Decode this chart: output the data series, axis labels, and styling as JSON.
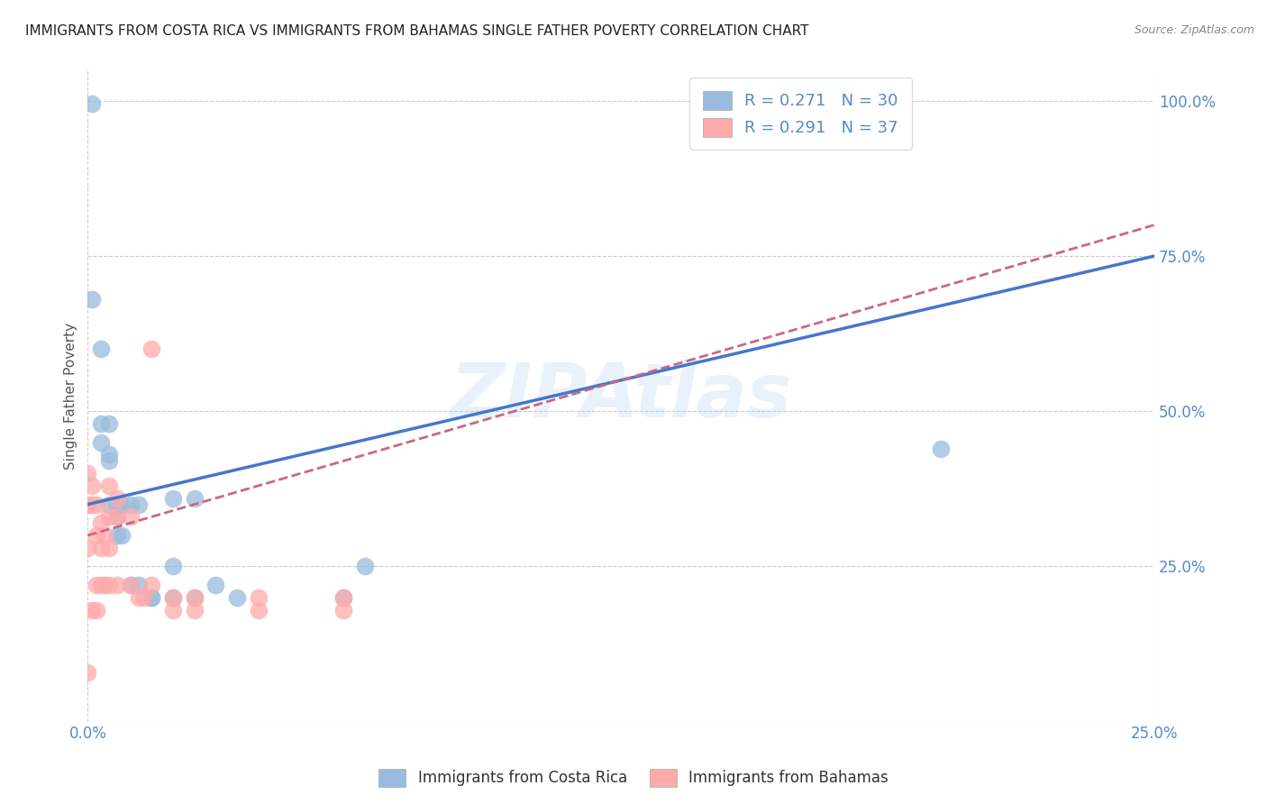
{
  "title": "IMMIGRANTS FROM COSTA RICA VS IMMIGRANTS FROM BAHAMAS SINGLE FATHER POVERTY CORRELATION CHART",
  "source": "Source: ZipAtlas.com",
  "xlabel_label": "Immigrants from Costa Rica",
  "ylabel_label": "Single Father Poverty",
  "xlabel2_label": "Immigrants from Bahamas",
  "r_costa_rica": 0.271,
  "n_costa_rica": 30,
  "r_bahamas": 0.291,
  "n_bahamas": 37,
  "xlim": [
    0.0,
    0.25
  ],
  "ylim": [
    0.0,
    1.05
  ],
  "xtick_positions": [
    0.0,
    0.25
  ],
  "xtick_labels": [
    "0.0%",
    "25.0%"
  ],
  "ytick_positions": [
    0.0,
    0.25,
    0.5,
    0.75,
    1.0
  ],
  "ytick_labels": [
    "",
    "25.0%",
    "50.0%",
    "75.0%",
    "100.0%"
  ],
  "watermark": "ZIPAtlas",
  "color_blue": "#99BBDD",
  "color_pink": "#FFAAAA",
  "color_blue_line": "#4477CC",
  "color_pink_line": "#CC6688",
  "color_axis_text": "#5588CC",
  "costa_rica_x": [
    0.001,
    0.001,
    0.003,
    0.003,
    0.003,
    0.005,
    0.005,
    0.005,
    0.005,
    0.007,
    0.007,
    0.007,
    0.008,
    0.008,
    0.01,
    0.01,
    0.012,
    0.012,
    0.015,
    0.015,
    0.02,
    0.02,
    0.025,
    0.025,
    0.03,
    0.035,
    0.06,
    0.065,
    0.2,
    0.02
  ],
  "costa_rica_y": [
    0.995,
    0.68,
    0.6,
    0.48,
    0.45,
    0.42,
    0.43,
    0.48,
    0.35,
    0.33,
    0.3,
    0.35,
    0.3,
    0.35,
    0.35,
    0.22,
    0.22,
    0.35,
    0.2,
    0.2,
    0.36,
    0.25,
    0.36,
    0.2,
    0.22,
    0.2,
    0.2,
    0.25,
    0.44,
    0.2
  ],
  "bahamas_x": [
    0.0,
    0.0,
    0.0,
    0.001,
    0.001,
    0.001,
    0.002,
    0.002,
    0.002,
    0.002,
    0.003,
    0.003,
    0.003,
    0.004,
    0.004,
    0.005,
    0.005,
    0.005,
    0.005,
    0.007,
    0.007,
    0.007,
    0.01,
    0.01,
    0.012,
    0.013,
    0.015,
    0.015,
    0.02,
    0.02,
    0.025,
    0.025,
    0.04,
    0.04,
    0.06,
    0.06,
    0.0
  ],
  "bahamas_y": [
    0.4,
    0.35,
    0.28,
    0.38,
    0.35,
    0.18,
    0.35,
    0.3,
    0.22,
    0.18,
    0.32,
    0.28,
    0.22,
    0.3,
    0.22,
    0.38,
    0.33,
    0.28,
    0.22,
    0.36,
    0.33,
    0.22,
    0.33,
    0.22,
    0.2,
    0.2,
    0.6,
    0.22,
    0.2,
    0.18,
    0.2,
    0.18,
    0.2,
    0.18,
    0.2,
    0.18,
    0.08
  ],
  "blue_line_x": [
    0.0,
    0.25
  ],
  "blue_line_y": [
    0.35,
    0.75
  ],
  "pink_line_x": [
    0.0,
    0.25
  ],
  "pink_line_y": [
    0.3,
    0.8
  ]
}
